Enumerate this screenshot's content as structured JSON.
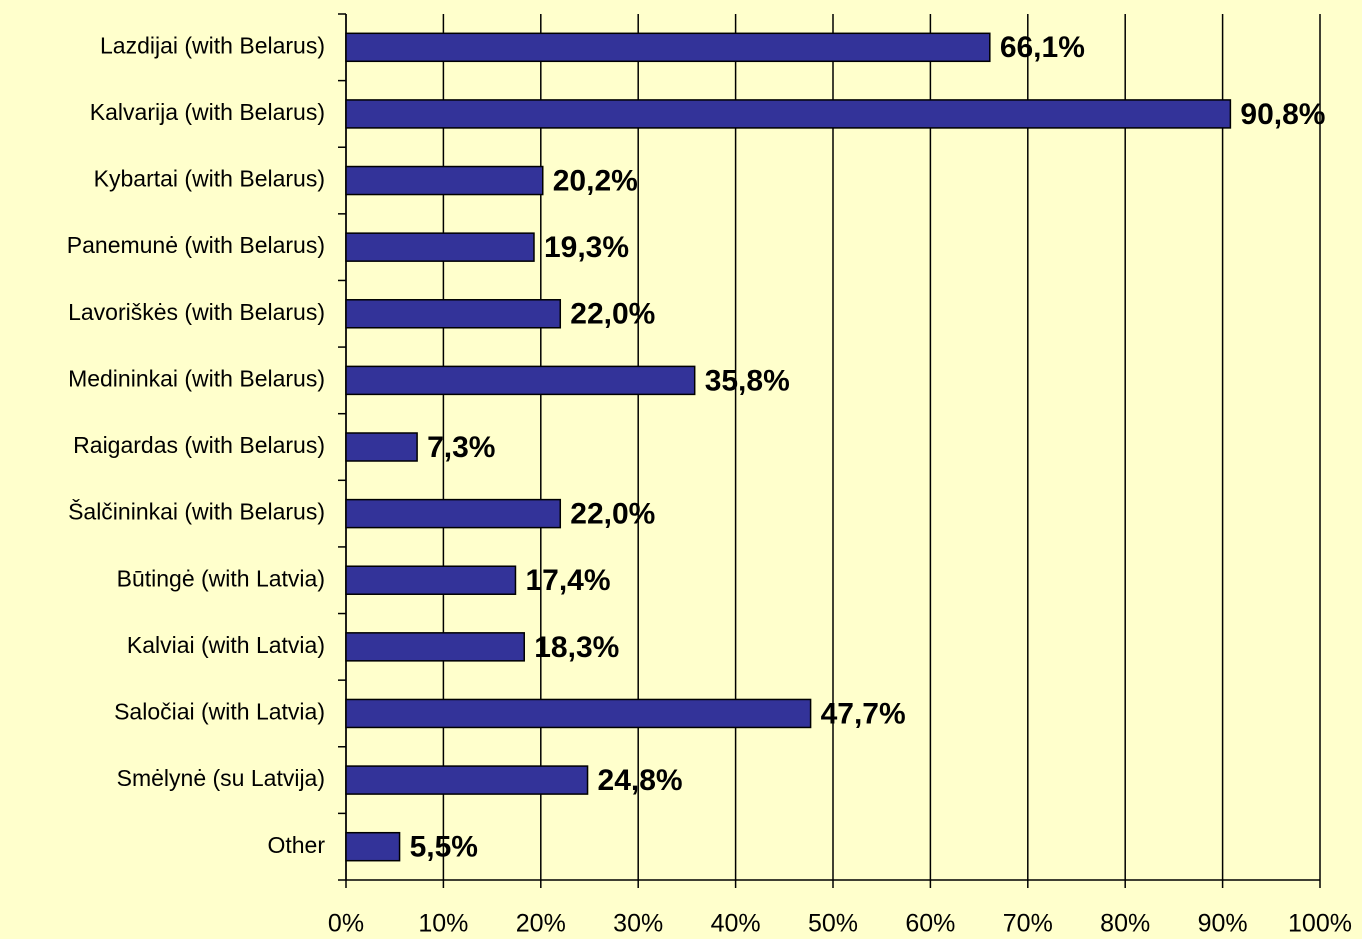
{
  "chart_data": {
    "type": "bar",
    "orientation": "horizontal",
    "categories": [
      "Lazdijai (with Belarus)",
      "Kalvarija (with Belarus)",
      "Kybartai (with Belarus)",
      "Panemunė (with Belarus)",
      "Lavoriškės (with Belarus)",
      "Medininkai (with Belarus)",
      "Raigardas (with Belarus)",
      "Šalčininkai (with Belarus)",
      "Būtingė (with Latvia)",
      "Kalviai (with Latvia)",
      "Saločiai (with Latvia)",
      "Smėlynė (su Latvija)",
      "Other"
    ],
    "values": [
      66.1,
      90.8,
      20.2,
      19.3,
      22.0,
      35.8,
      7.3,
      22.0,
      17.4,
      18.3,
      47.7,
      24.8,
      5.5
    ],
    "value_labels": [
      "66,1%",
      "90,8%",
      "20,2%",
      "19,3%",
      "22,0%",
      "35,8%",
      "7,3%",
      "22,0%",
      "17,4%",
      "18,3%",
      "47,7%",
      "24,8%",
      "5,5%"
    ],
    "color": "#333399",
    "xlim": [
      0,
      100
    ],
    "xticks": [
      {
        "value": 0,
        "label": "0%"
      },
      {
        "value": 10,
        "label": "10%"
      },
      {
        "value": 20,
        "label": "20%"
      },
      {
        "value": 30,
        "label": "30%"
      },
      {
        "value": 40,
        "label": "40%"
      },
      {
        "value": 50,
        "label": "50%"
      },
      {
        "value": 60,
        "label": "60%"
      },
      {
        "value": 70,
        "label": "70%"
      },
      {
        "value": 80,
        "label": "80%"
      },
      {
        "value": 90,
        "label": "90%"
      },
      {
        "value": 100,
        "label": "100%"
      }
    ],
    "grid": true
  }
}
